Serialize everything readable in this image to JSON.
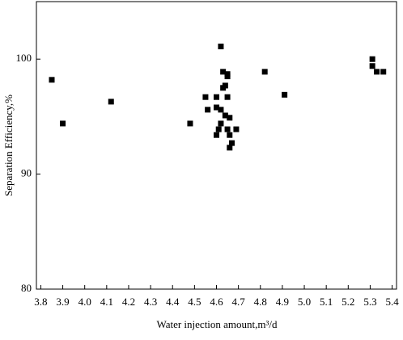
{
  "chart_data": {
    "type": "scatter",
    "x_label": "Water injection amount,m³/d",
    "y_label": "Separation Efficiency,%",
    "color": "#000000",
    "x": [
      3.85,
      3.9,
      4.12,
      4.48,
      4.55,
      4.56,
      4.62,
      4.63,
      4.65,
      4.65,
      4.64,
      4.63,
      4.6,
      4.65,
      4.6,
      4.62,
      4.64,
      4.66,
      4.62,
      4.61,
      4.65,
      4.69,
      4.6,
      4.66,
      4.67,
      4.66,
      4.82,
      4.91,
      5.31,
      5.31,
      5.33,
      5.36
    ],
    "values": [
      98.2,
      94.4,
      96.3,
      94.4,
      96.7,
      95.6,
      101.1,
      98.9,
      98.7,
      98.5,
      97.7,
      97.5,
      96.7,
      96.7,
      95.8,
      95.6,
      95.1,
      94.9,
      94.4,
      93.9,
      93.9,
      93.9,
      93.4,
      93.4,
      92.7,
      92.3,
      98.9,
      96.9,
      100,
      99.4,
      98.9,
      98.9
    ],
    "xlim": [
      3.78,
      5.42
    ],
    "ylim": [
      80,
      105
    ],
    "xticks": [
      3.8,
      3.9,
      {
        "value": 4,
        "label": "4.0"
      },
      4.1,
      4.2,
      4.3,
      4.4,
      4.5,
      4.6,
      4.7,
      4.8,
      4.9,
      {
        "value": 5,
        "label": "5.0"
      },
      5.1,
      5.2,
      5.3,
      5.4
    ],
    "yticks": [
      80,
      90,
      100
    ],
    "grid": false
  }
}
